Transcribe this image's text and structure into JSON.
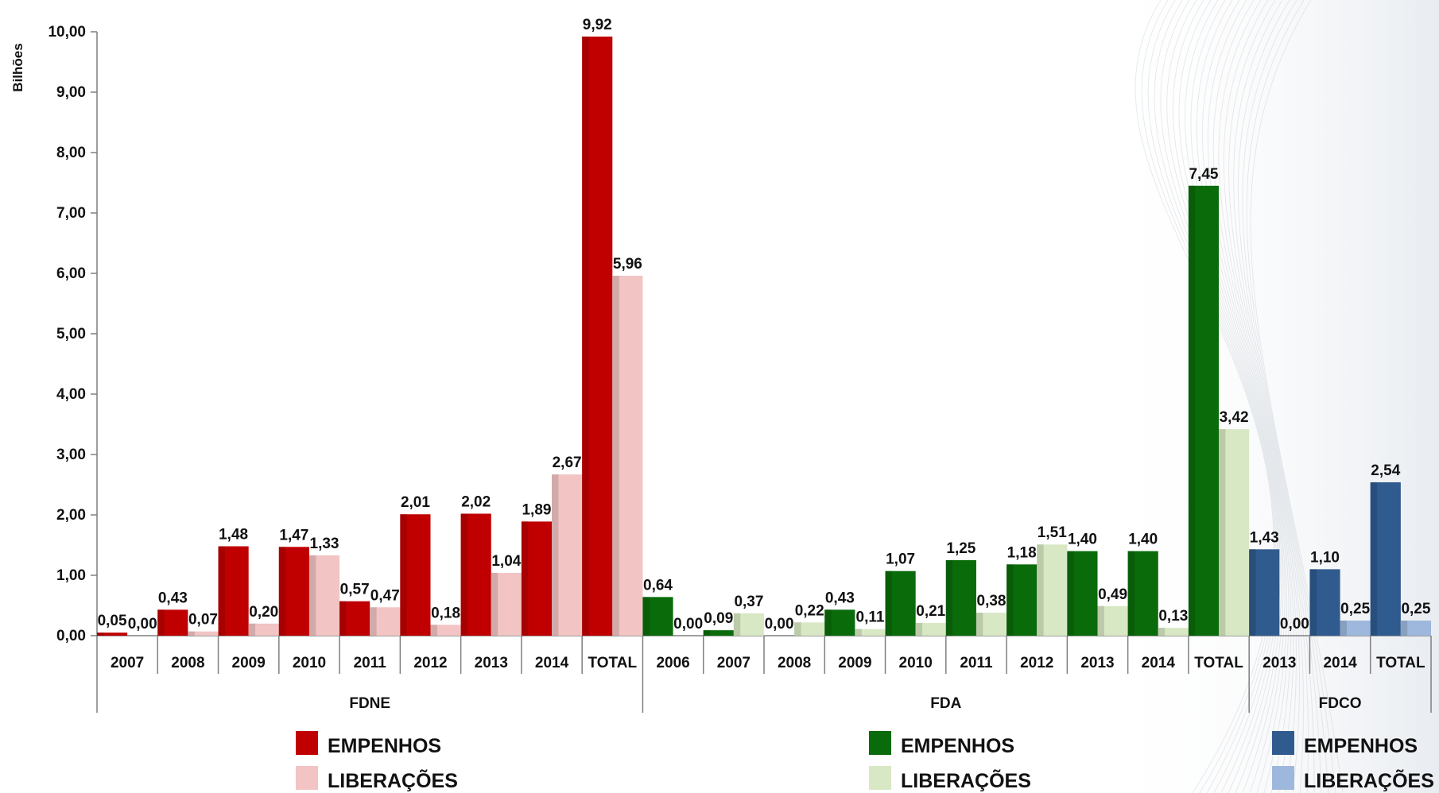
{
  "chart_data": {
    "type": "bar",
    "ylabel": "Bilhões",
    "ylim": [
      0,
      10
    ],
    "yticks": [
      "0,00",
      "1,00",
      "2,00",
      "3,00",
      "4,00",
      "5,00",
      "6,00",
      "7,00",
      "8,00",
      "9,00",
      "10,00"
    ],
    "grid": false,
    "groups": [
      {
        "name": "FDNE",
        "colors": {
          "empenhos": "#c00000",
          "liberacoes": "#f2c4c4"
        },
        "categories": [
          "2007",
          "2008",
          "2009",
          "2010",
          "2011",
          "2012",
          "2013",
          "2014",
          "TOTAL"
        ],
        "empenhos": [
          0.05,
          0.43,
          1.48,
          1.47,
          0.57,
          2.01,
          2.02,
          1.89,
          9.92
        ],
        "liberacoes": [
          0.0,
          0.07,
          0.2,
          1.33,
          0.47,
          0.18,
          1.04,
          2.67,
          5.96
        ]
      },
      {
        "name": "FDA",
        "colors": {
          "empenhos": "#0a6b0a",
          "liberacoes": "#d9e8c4"
        },
        "categories": [
          "2006",
          "2007",
          "2008",
          "2009",
          "2010",
          "2011",
          "2012",
          "2013",
          "2014",
          "TOTAL"
        ],
        "empenhos": [
          0.64,
          0.09,
          0.0,
          0.43,
          1.07,
          1.25,
          1.18,
          1.4,
          1.4,
          7.45
        ],
        "liberacoes": [
          0.0,
          0.37,
          0.22,
          0.11,
          0.21,
          0.38,
          1.51,
          0.49,
          0.13,
          3.42
        ]
      },
      {
        "name": "FDCO",
        "colors": {
          "empenhos": "#2f5b8f",
          "liberacoes": "#9db8dc"
        },
        "categories": [
          "2013",
          "2014",
          "TOTAL"
        ],
        "empenhos": [
          1.43,
          1.1,
          2.54
        ],
        "liberacoes": [
          0.0,
          0.25,
          0.25
        ]
      }
    ],
    "legend": [
      {
        "label": "EMPENHOS",
        "color": "#c00000"
      },
      {
        "label": "LIBERAÇÕES",
        "color": "#f2c4c4"
      },
      {
        "label": "EMPENHOS",
        "color": "#0a6b0a"
      },
      {
        "label": "LIBERAÇÕES",
        "color": "#d9e8c4"
      },
      {
        "label": "EMPENHOS",
        "color": "#2f5b8f"
      },
      {
        "label": "LIBERAÇÕES",
        "color": "#9db8dc"
      }
    ]
  }
}
